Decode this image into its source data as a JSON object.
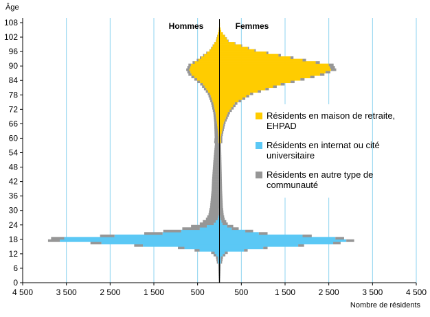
{
  "chart_data": {
    "type": "population-pyramid",
    "ylabel": "Âge",
    "xlabel": "Nombre de résidents",
    "left_label": "Hommes",
    "right_label": "Femmes",
    "xlim": [
      -4500,
      4500
    ],
    "ylim": [
      0,
      110
    ],
    "grid": true,
    "legend_position": "right",
    "x_tick_values": [
      -4500,
      -3500,
      -2500,
      -1500,
      -500,
      500,
      1500,
      2500,
      3500,
      4500
    ],
    "x_tick_labels": [
      "4 500",
      "3 500",
      "2 500",
      "1 500",
      "500",
      "500",
      "1 500",
      "2 500",
      "3 500",
      "4 500"
    ],
    "y_ticks": [
      0,
      6,
      12,
      18,
      24,
      30,
      36,
      42,
      48,
      54,
      60,
      66,
      72,
      78,
      84,
      90,
      96,
      102,
      108
    ],
    "stack_order": [
      "ehpad",
      "internat",
      "autre"
    ],
    "series": [
      {
        "key": "ehpad",
        "name": "Résidents en maison de retraite, EHPAD",
        "color": "#FFCC00",
        "ages": [
          60,
          66,
          70,
          74,
          78,
          82,
          86,
          88,
          90,
          92,
          96,
          100,
          104,
          106
        ],
        "men": [
          20,
          60,
          90,
          140,
          220,
          380,
          640,
          690,
          650,
          480,
          220,
          80,
          20,
          5
        ],
        "women": [
          30,
          100,
          190,
          350,
          700,
          1400,
          2300,
          2550,
          2500,
          1900,
          800,
          200,
          40,
          10
        ]
      },
      {
        "key": "internat",
        "name": "Résidents en internat ou cité universitaire",
        "color": "#5BC8F5",
        "ages": [
          10,
          12,
          14,
          16,
          17,
          18,
          19,
          20,
          22,
          24,
          26,
          28
        ],
        "men": [
          30,
          110,
          800,
          2700,
          3650,
          3550,
          2400,
          1300,
          450,
          130,
          40,
          10
        ],
        "women": [
          30,
          120,
          1000,
          2600,
          2900,
          2650,
          1900,
          900,
          280,
          70,
          20,
          5
        ]
      },
      {
        "key": "autre",
        "name": "Résidents en autre type de communauté",
        "color": "#969696",
        "ages": [
          0,
          4,
          8,
          10,
          12,
          14,
          16,
          17,
          18,
          19,
          20,
          22,
          24,
          26,
          28,
          30,
          34,
          38,
          42,
          46,
          50,
          54,
          58,
          62,
          66,
          70,
          74,
          78,
          82,
          86,
          88,
          90,
          92,
          96,
          100
        ],
        "men": [
          15,
          25,
          30,
          50,
          80,
          150,
          250,
          270,
          300,
          330,
          420,
          400,
          320,
          270,
          240,
          220,
          200,
          180,
          170,
          155,
          140,
          120,
          100,
          80,
          60,
          50,
          50,
          50,
          60,
          70,
          70,
          60,
          40,
          10,
          5
        ],
        "women": [
          15,
          25,
          30,
          50,
          70,
          100,
          170,
          180,
          200,
          210,
          200,
          160,
          120,
          100,
          90,
          80,
          70,
          60,
          55,
          50,
          45,
          40,
          35,
          35,
          40,
          50,
          60,
          70,
          90,
          100,
          120,
          110,
          80,
          30,
          10
        ]
      }
    ]
  }
}
